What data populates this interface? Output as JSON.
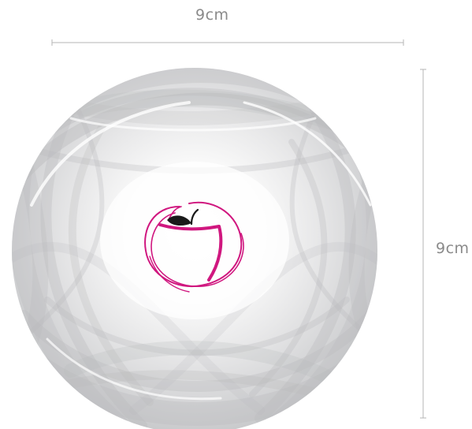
{
  "dimensions": {
    "width_label": "9cm",
    "height_label": "9cm"
  },
  "colors": {
    "logo": "#d0177f",
    "leaf": "#1a1a1a",
    "dimension_line": "#b5b5b5",
    "swirl_gray": "#b9babc"
  },
  "icons": {
    "logo": "apple-logo-icon"
  }
}
